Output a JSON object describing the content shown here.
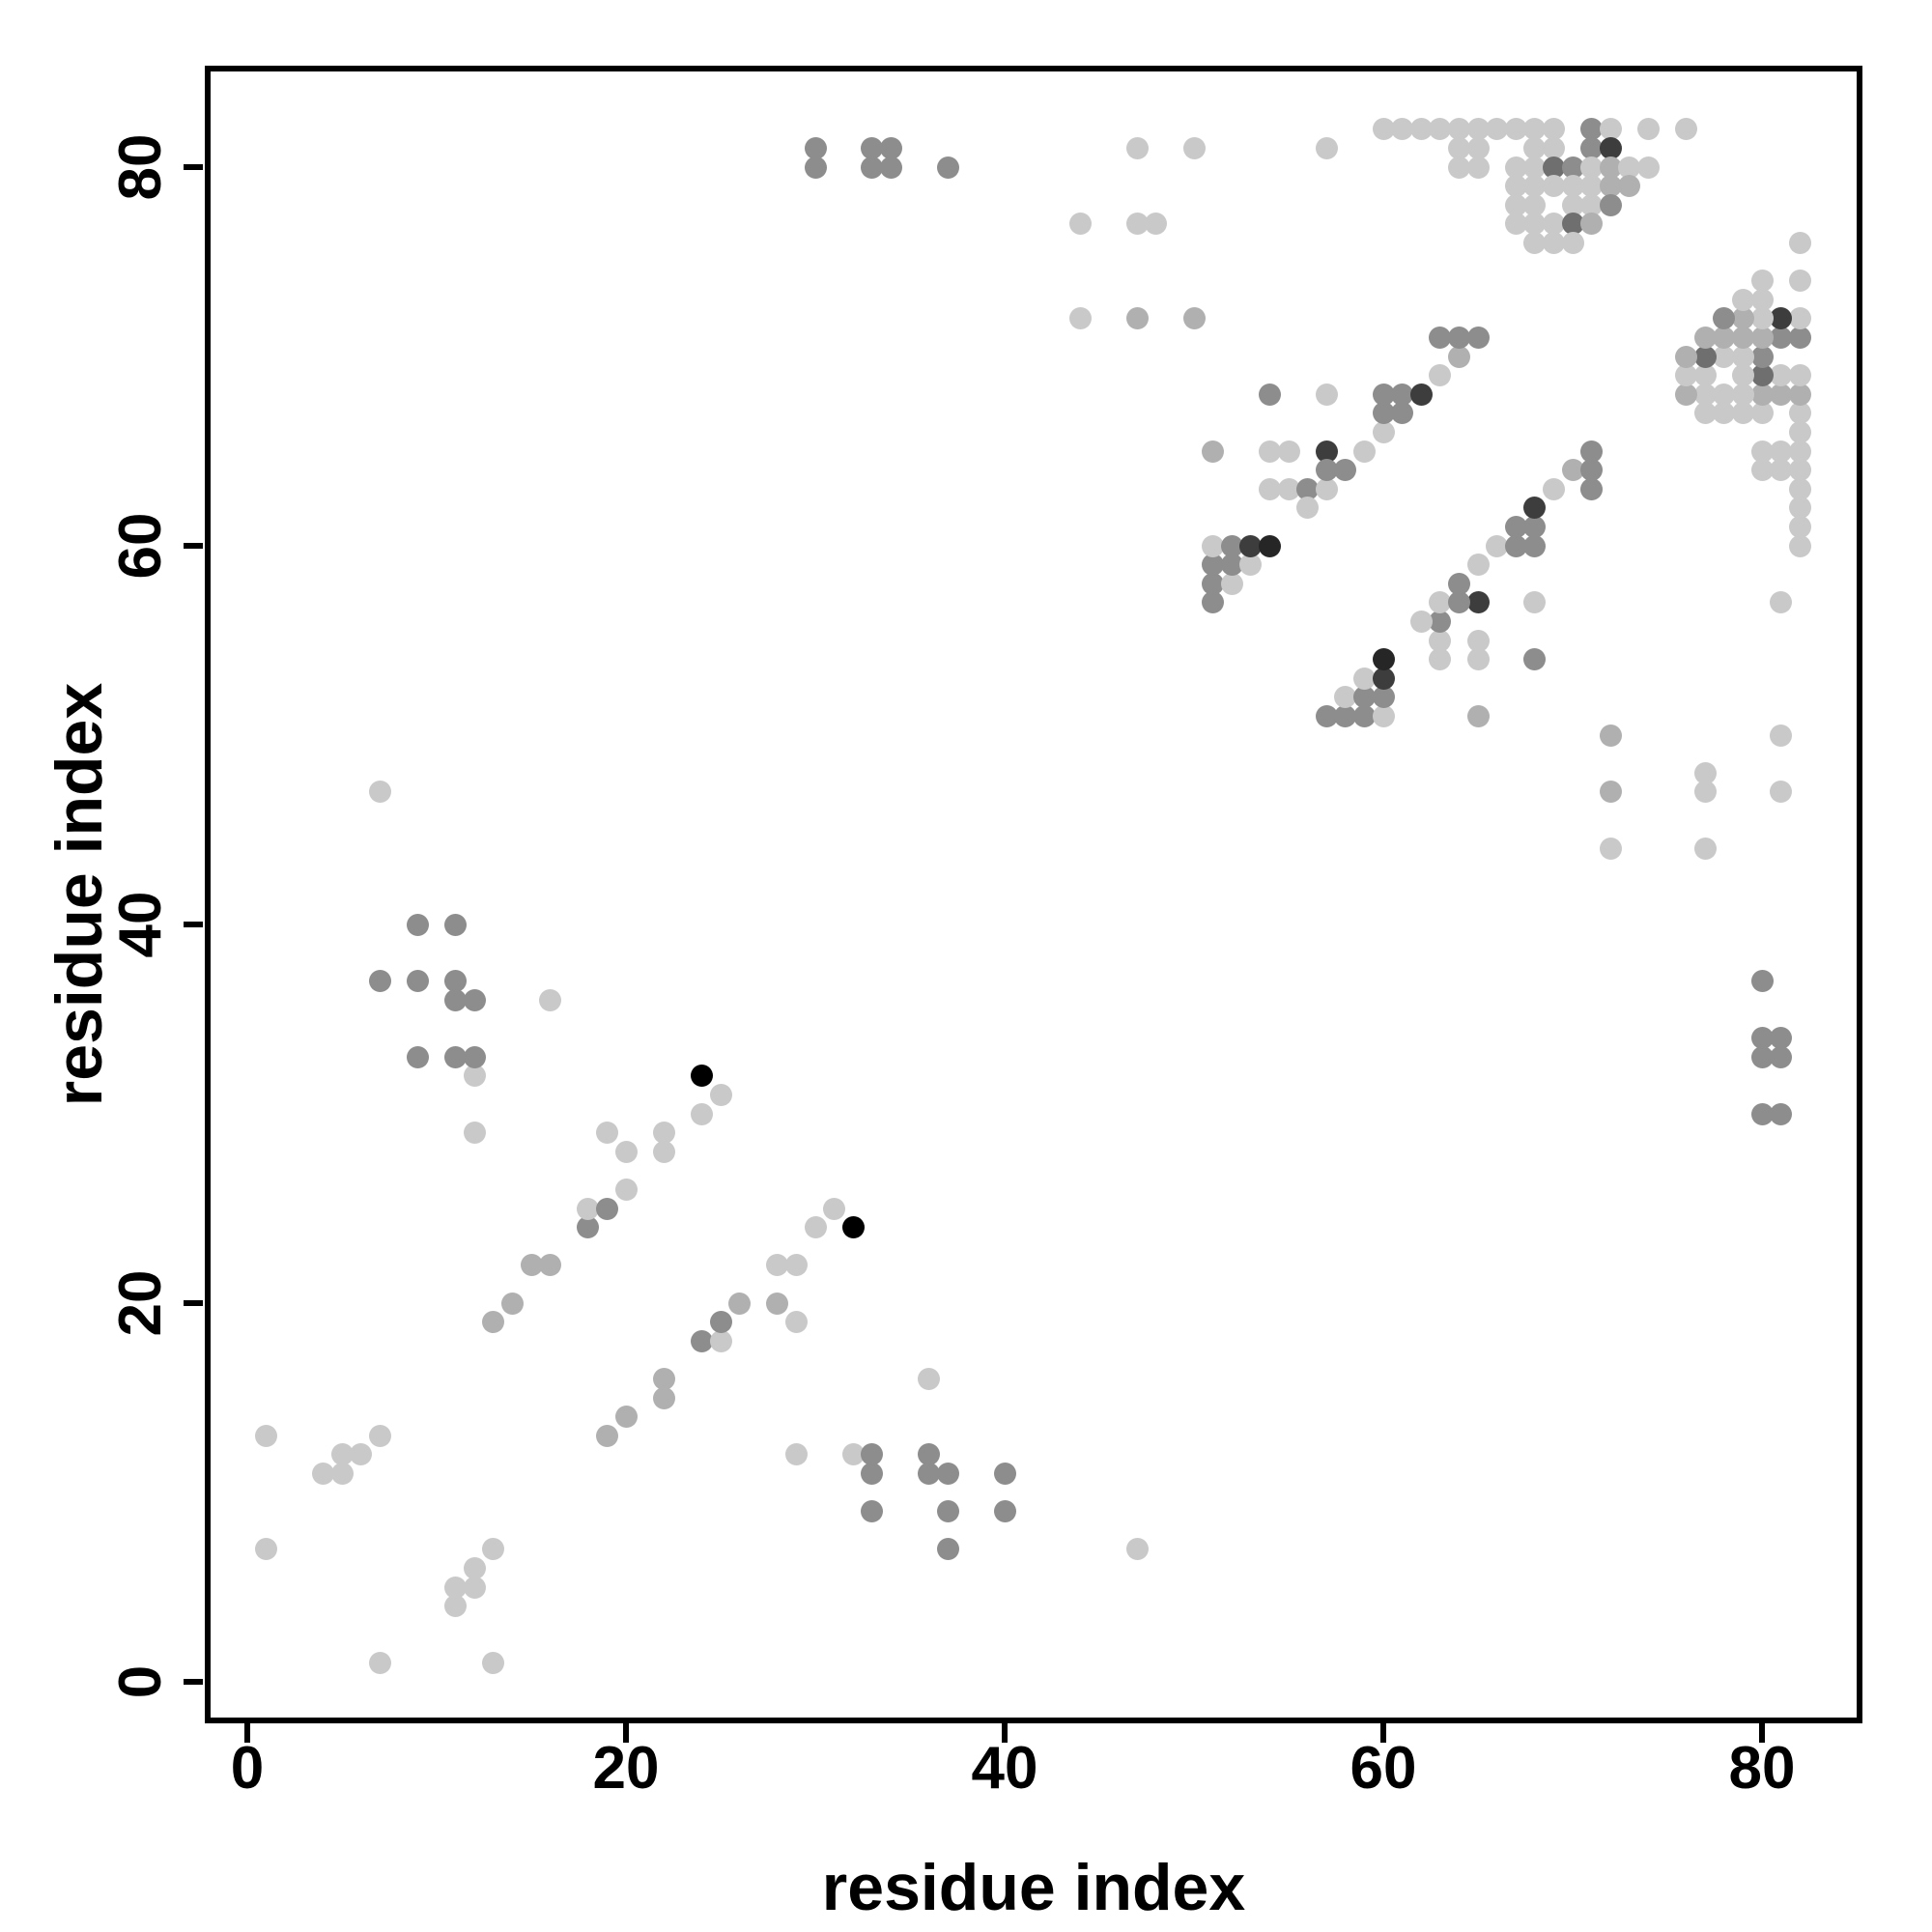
{
  "chart_data": {
    "type": "scatter",
    "title": "",
    "xlabel": "residue index",
    "ylabel": "residue index",
    "x_ticks": [
      0,
      20,
      40,
      60,
      80
    ],
    "y_ticks": [
      0,
      20,
      40,
      60,
      80
    ],
    "xlim": [
      -2.2,
      85.3
    ],
    "ylim": [
      -2.2,
      85.2
    ],
    "grid": false,
    "legend": "none",
    "marker": "filled-circle",
    "shade_colors": {
      "L": "#c9c9c9",
      "A": "#b0b0b0",
      "M": "#8d8d8d",
      "D": "#6f6f6f",
      "V": "#3d3d3d",
      "X": "#262626",
      "K": "#000000"
    },
    "points": [
      [
        7,
        1,
        "L"
      ],
      [
        13,
        1,
        "L"
      ],
      [
        11,
        4,
        "L"
      ],
      [
        11,
        5,
        "L"
      ],
      [
        12,
        5,
        "L"
      ],
      [
        12,
        6,
        "L"
      ],
      [
        1,
        7,
        "L"
      ],
      [
        13,
        7,
        "L"
      ],
      [
        4,
        11,
        "L"
      ],
      [
        5,
        11,
        "L"
      ],
      [
        5,
        12,
        "L"
      ],
      [
        6,
        12,
        "L"
      ],
      [
        1,
        13,
        "L"
      ],
      [
        7,
        13,
        "L"
      ],
      [
        19,
        13,
        "A"
      ],
      [
        20,
        14,
        "A"
      ],
      [
        22,
        15,
        "A"
      ],
      [
        22,
        16,
        "A"
      ],
      [
        13,
        19,
        "A"
      ],
      [
        14,
        20,
        "A"
      ],
      [
        15,
        22,
        "A"
      ],
      [
        16,
        22,
        "A"
      ],
      [
        24,
        18,
        "M"
      ],
      [
        25,
        18,
        "L"
      ],
      [
        25,
        19,
        "M"
      ],
      [
        18,
        24,
        "M"
      ],
      [
        18,
        25,
        "L"
      ],
      [
        19,
        25,
        "M"
      ],
      [
        26,
        20,
        "A"
      ],
      [
        28,
        20,
        "A"
      ],
      [
        20,
        26,
        "L"
      ],
      [
        20,
        28,
        "L"
      ],
      [
        28,
        22,
        "L"
      ],
      [
        29,
        22,
        "L"
      ],
      [
        22,
        28,
        "L"
      ],
      [
        22,
        29,
        "L"
      ],
      [
        29,
        19,
        "L"
      ],
      [
        19,
        29,
        "L"
      ],
      [
        29,
        12,
        "L"
      ],
      [
        12,
        29,
        "L"
      ],
      [
        30,
        24,
        "L"
      ],
      [
        24,
        30,
        "L"
      ],
      [
        31,
        25,
        "L"
      ],
      [
        25,
        31,
        "L"
      ],
      [
        32,
        24,
        "K"
      ],
      [
        24,
        32,
        "K"
      ],
      [
        32,
        12,
        "L"
      ],
      [
        12,
        32,
        "L"
      ],
      [
        40,
        9,
        "M"
      ],
      [
        40,
        11,
        "M"
      ],
      [
        9,
        40,
        "M"
      ],
      [
        11,
        40,
        "M"
      ],
      [
        37,
        7,
        "M"
      ],
      [
        37,
        9,
        "M"
      ],
      [
        37,
        11,
        "M"
      ],
      [
        7,
        37,
        "M"
      ],
      [
        9,
        37,
        "M"
      ],
      [
        11,
        37,
        "M"
      ],
      [
        36,
        11,
        "M"
      ],
      [
        36,
        12,
        "M"
      ],
      [
        11,
        36,
        "M"
      ],
      [
        12,
        36,
        "M"
      ],
      [
        36,
        16,
        "L"
      ],
      [
        16,
        36,
        "L"
      ],
      [
        33,
        9,
        "M"
      ],
      [
        33,
        11,
        "M"
      ],
      [
        33,
        12,
        "M"
      ],
      [
        9,
        33,
        "M"
      ],
      [
        11,
        33,
        "M"
      ],
      [
        12,
        33,
        "M"
      ],
      [
        47,
        7,
        "L"
      ],
      [
        7,
        47,
        "L"
      ],
      [
        80,
        30,
        "M"
      ],
      [
        81,
        30,
        "M"
      ],
      [
        30,
        80,
        "M"
      ],
      [
        30,
        81,
        "M"
      ],
      [
        80,
        33,
        "M"
      ],
      [
        80,
        34,
        "M"
      ],
      [
        81,
        33,
        "M"
      ],
      [
        81,
        34,
        "M"
      ],
      [
        33,
        80,
        "M"
      ],
      [
        34,
        80,
        "M"
      ],
      [
        33,
        81,
        "M"
      ],
      [
        34,
        81,
        "M"
      ],
      [
        80,
        37,
        "M"
      ],
      [
        37,
        80,
        "M"
      ],
      [
        81,
        47,
        "L"
      ],
      [
        81,
        50,
        "L"
      ],
      [
        47,
        81,
        "L"
      ],
      [
        50,
        81,
        "L"
      ],
      [
        77,
        44,
        "L"
      ],
      [
        77,
        47,
        "L"
      ],
      [
        77,
        48,
        "L"
      ],
      [
        44,
        77,
        "L"
      ],
      [
        47,
        77,
        "L"
      ],
      [
        48,
        77,
        "L"
      ],
      [
        72,
        44,
        "L"
      ],
      [
        72,
        47,
        "A"
      ],
      [
        72,
        50,
        "A"
      ],
      [
        44,
        72,
        "L"
      ],
      [
        47,
        72,
        "A"
      ],
      [
        50,
        72,
        "A"
      ],
      [
        51,
        57,
        "M"
      ],
      [
        51,
        58,
        "M"
      ],
      [
        51,
        59,
        "M"
      ],
      [
        51,
        60,
        "L"
      ],
      [
        52,
        58,
        "L"
      ],
      [
        52,
        59,
        "M"
      ],
      [
        52,
        60,
        "M"
      ],
      [
        53,
        59,
        "L"
      ],
      [
        53,
        60,
        "V"
      ],
      [
        54,
        60,
        "X"
      ],
      [
        57,
        51,
        "M"
      ],
      [
        58,
        51,
        "M"
      ],
      [
        59,
        51,
        "M"
      ],
      [
        60,
        51,
        "L"
      ],
      [
        58,
        52,
        "L"
      ],
      [
        59,
        52,
        "M"
      ],
      [
        60,
        52,
        "M"
      ],
      [
        59,
        53,
        "L"
      ],
      [
        60,
        53,
        "V"
      ],
      [
        60,
        54,
        "X"
      ],
      [
        51,
        65,
        "A"
      ],
      [
        65,
        51,
        "A"
      ],
      [
        54,
        63,
        "L"
      ],
      [
        55,
        63,
        "L"
      ],
      [
        56,
        63,
        "M"
      ],
      [
        57,
        63,
        "L"
      ],
      [
        63,
        54,
        "L"
      ],
      [
        63,
        55,
        "L"
      ],
      [
        63,
        56,
        "M"
      ],
      [
        63,
        57,
        "L"
      ],
      [
        54,
        65,
        "L"
      ],
      [
        55,
        65,
        "L"
      ],
      [
        57,
        65,
        "V"
      ],
      [
        59,
        65,
        "L"
      ],
      [
        65,
        54,
        "L"
      ],
      [
        65,
        55,
        "L"
      ],
      [
        65,
        57,
        "V"
      ],
      [
        65,
        59,
        "L"
      ],
      [
        56,
        62,
        "L"
      ],
      [
        62,
        56,
        "L"
      ],
      [
        57,
        64,
        "M"
      ],
      [
        58,
        64,
        "M"
      ],
      [
        64,
        57,
        "M"
      ],
      [
        64,
        58,
        "M"
      ],
      [
        54,
        68,
        "M"
      ],
      [
        68,
        54,
        "M"
      ],
      [
        57,
        68,
        "L"
      ],
      [
        68,
        57,
        "L"
      ],
      [
        60,
        66,
        "L"
      ],
      [
        66,
        60,
        "L"
      ],
      [
        60,
        67,
        "M"
      ],
      [
        61,
        67,
        "M"
      ],
      [
        67,
        60,
        "M"
      ],
      [
        67,
        61,
        "M"
      ],
      [
        60,
        68,
        "M"
      ],
      [
        61,
        68,
        "M"
      ],
      [
        62,
        68,
        "V"
      ],
      [
        68,
        60,
        "M"
      ],
      [
        68,
        61,
        "M"
      ],
      [
        68,
        62,
        "V"
      ],
      [
        63,
        69,
        "L"
      ],
      [
        69,
        63,
        "L"
      ],
      [
        64,
        70,
        "A"
      ],
      [
        70,
        64,
        "A"
      ],
      [
        63,
        71,
        "M"
      ],
      [
        64,
        71,
        "M"
      ],
      [
        65,
        71,
        "M"
      ],
      [
        71,
        63,
        "M"
      ],
      [
        71,
        64,
        "M"
      ],
      [
        71,
        65,
        "M"
      ],
      [
        60,
        82,
        "L"
      ],
      [
        61,
        82,
        "L"
      ],
      [
        62,
        82,
        "L"
      ],
      [
        63,
        82,
        "L"
      ],
      [
        64,
        82,
        "L"
      ],
      [
        65,
        82,
        "L"
      ],
      [
        66,
        82,
        "L"
      ],
      [
        67,
        82,
        "L"
      ],
      [
        68,
        82,
        "L"
      ],
      [
        69,
        82,
        "L"
      ],
      [
        71,
        82,
        "M"
      ],
      [
        72,
        82,
        "L"
      ],
      [
        74,
        82,
        "L"
      ],
      [
        76,
        82,
        "L"
      ],
      [
        82,
        60,
        "L"
      ],
      [
        82,
        61,
        "L"
      ],
      [
        82,
        62,
        "L"
      ],
      [
        82,
        63,
        "L"
      ],
      [
        82,
        64,
        "L"
      ],
      [
        82,
        65,
        "L"
      ],
      [
        82,
        66,
        "L"
      ],
      [
        82,
        67,
        "L"
      ],
      [
        82,
        68,
        "A"
      ],
      [
        82,
        69,
        "L"
      ],
      [
        82,
        71,
        "M"
      ],
      [
        82,
        72,
        "L"
      ],
      [
        82,
        74,
        "L"
      ],
      [
        82,
        76,
        "L"
      ],
      [
        57,
        81,
        "L"
      ],
      [
        81,
        57,
        "L"
      ],
      [
        64,
        81,
        "L"
      ],
      [
        65,
        81,
        "L"
      ],
      [
        68,
        81,
        "L"
      ],
      [
        69,
        81,
        "L"
      ],
      [
        71,
        81,
        "M"
      ],
      [
        72,
        81,
        "V"
      ],
      [
        81,
        64,
        "L"
      ],
      [
        81,
        65,
        "L"
      ],
      [
        81,
        68,
        "A"
      ],
      [
        81,
        69,
        "L"
      ],
      [
        81,
        71,
        "M"
      ],
      [
        81,
        72,
        "V"
      ],
      [
        64,
        80,
        "L"
      ],
      [
        65,
        80,
        "L"
      ],
      [
        67,
        80,
        "L"
      ],
      [
        68,
        80,
        "L"
      ],
      [
        69,
        80,
        "D"
      ],
      [
        70,
        80,
        "M"
      ],
      [
        71,
        80,
        "L"
      ],
      [
        72,
        80,
        "A"
      ],
      [
        73,
        80,
        "L"
      ],
      [
        74,
        80,
        "L"
      ],
      [
        80,
        64,
        "L"
      ],
      [
        80,
        65,
        "L"
      ],
      [
        80,
        67,
        "L"
      ],
      [
        80,
        68,
        "A"
      ],
      [
        80,
        69,
        "D"
      ],
      [
        80,
        70,
        "M"
      ],
      [
        80,
        71,
        "A"
      ],
      [
        80,
        72,
        "L"
      ],
      [
        80,
        73,
        "L"
      ],
      [
        80,
        74,
        "L"
      ],
      [
        67,
        79,
        "L"
      ],
      [
        68,
        79,
        "L"
      ],
      [
        69,
        79,
        "L"
      ],
      [
        70,
        79,
        "L"
      ],
      [
        71,
        79,
        "L"
      ],
      [
        72,
        79,
        "A"
      ],
      [
        73,
        79,
        "A"
      ],
      [
        79,
        67,
        "L"
      ],
      [
        79,
        68,
        "L"
      ],
      [
        79,
        69,
        "L"
      ],
      [
        79,
        70,
        "L"
      ],
      [
        79,
        71,
        "A"
      ],
      [
        79,
        72,
        "A"
      ],
      [
        79,
        73,
        "L"
      ],
      [
        67,
        78,
        "L"
      ],
      [
        68,
        78,
        "L"
      ],
      [
        70,
        78,
        "L"
      ],
      [
        71,
        78,
        "L"
      ],
      [
        72,
        78,
        "M"
      ],
      [
        78,
        67,
        "L"
      ],
      [
        78,
        68,
        "L"
      ],
      [
        78,
        70,
        "L"
      ],
      [
        78,
        71,
        "A"
      ],
      [
        78,
        72,
        "M"
      ],
      [
        67,
        77,
        "L"
      ],
      [
        68,
        77,
        "L"
      ],
      [
        69,
        77,
        "L"
      ],
      [
        70,
        77,
        "D"
      ],
      [
        71,
        77,
        "A"
      ],
      [
        77,
        67,
        "L"
      ],
      [
        77,
        68,
        "L"
      ],
      [
        77,
        69,
        "L"
      ],
      [
        77,
        70,
        "D"
      ],
      [
        77,
        71,
        "A"
      ],
      [
        68,
        76,
        "L"
      ],
      [
        69,
        76,
        "L"
      ],
      [
        70,
        76,
        "L"
      ],
      [
        76,
        68,
        "A"
      ],
      [
        76,
        69,
        "L"
      ],
      [
        76,
        70,
        "A"
      ]
    ]
  }
}
